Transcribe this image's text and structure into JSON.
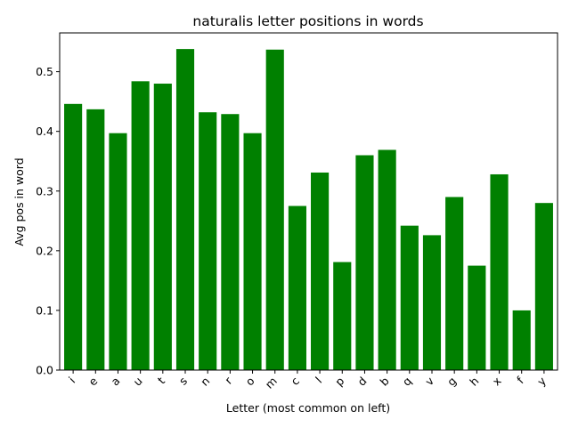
{
  "chart_data": {
    "type": "bar",
    "title": "naturalis letter positions in words",
    "xlabel": "Letter (most common on left)",
    "ylabel": "Avg pos in word",
    "categories": [
      "i",
      "e",
      "a",
      "u",
      "t",
      "s",
      "n",
      "r",
      "o",
      "m",
      "c",
      "l",
      "p",
      "d",
      "b",
      "q",
      "v",
      "g",
      "h",
      "x",
      "f",
      "y"
    ],
    "values": [
      0.446,
      0.437,
      0.397,
      0.484,
      0.48,
      0.538,
      0.432,
      0.429,
      0.397,
      0.537,
      0.275,
      0.331,
      0.181,
      0.36,
      0.369,
      0.242,
      0.226,
      0.29,
      0.175,
      0.328,
      0.1,
      0.28
    ],
    "ylim": [
      0,
      0.565
    ],
    "yticks": [
      0.0,
      0.1,
      0.2,
      0.3,
      0.4,
      0.5
    ],
    "ytick_labels": [
      "0.0",
      "0.1",
      "0.2",
      "0.3",
      "0.4",
      "0.5"
    ],
    "bar_color": "#008000",
    "grid": false,
    "legend": "none"
  }
}
